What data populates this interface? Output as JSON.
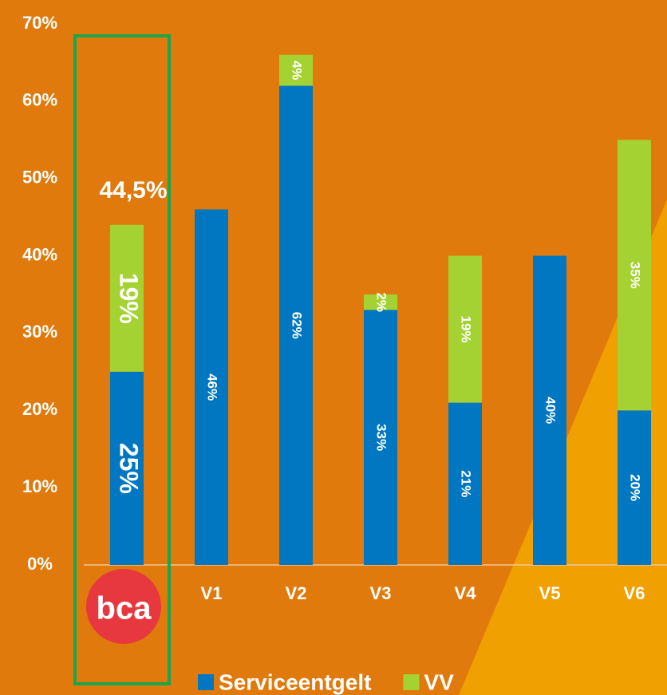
{
  "chart_data": {
    "type": "stacked_bar",
    "categories": [
      "bca",
      "V1",
      "V2",
      "V3",
      "V4",
      "V5",
      "V6"
    ],
    "series": [
      {
        "name": "Serviceentgelt",
        "color": "#0077c0",
        "values": [
          25,
          46,
          62,
          33,
          21,
          40,
          20
        ],
        "value_labels": [
          "25%",
          "46%",
          "62%",
          "33%",
          "21%",
          "40%",
          "20%"
        ]
      },
      {
        "name": "VV",
        "color": "#a4d233",
        "values": [
          19,
          null,
          4,
          2,
          19,
          null,
          35
        ],
        "value_labels": [
          "19%",
          null,
          "4%",
          "2%",
          "19%",
          null,
          "35%"
        ]
      }
    ],
    "annotation": "44,5%",
    "ylim": [
      0,
      70
    ],
    "yticks": [
      {
        "value": 0,
        "label": "0%"
      },
      {
        "value": 10,
        "label": "10%"
      },
      {
        "value": 20,
        "label": "20%"
      },
      {
        "value": 30,
        "label": "30%"
      },
      {
        "value": 40,
        "label": "40%"
      },
      {
        "value": 50,
        "label": "50%"
      },
      {
        "value": 60,
        "label": "60%"
      },
      {
        "value": 70,
        "label": "70%"
      }
    ]
  }
}
